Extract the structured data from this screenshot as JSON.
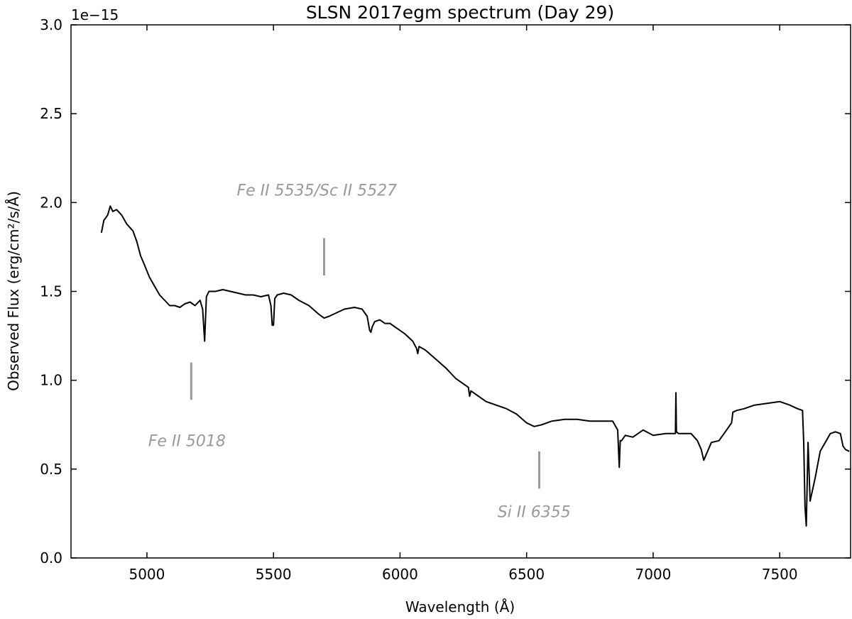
{
  "chart_data": {
    "type": "line",
    "title": "SLSN 2017egm spectrum (Day 29)",
    "xlabel": "Wavelength (Å)",
    "ylabel": "Observed Flux (erg/cm²/s/Å)",
    "y_offset_text": "1e−15",
    "xlim": [
      4700,
      7780
    ],
    "ylim": [
      0.0,
      3.0
    ],
    "x_ticks": [
      5000,
      5500,
      6000,
      6500,
      7000,
      7500
    ],
    "x_tick_labels": [
      "5000",
      "5500",
      "6000",
      "6500",
      "7000",
      "7500"
    ],
    "y_ticks": [
      0.0,
      0.5,
      1.0,
      1.5,
      2.0,
      2.5,
      3.0
    ],
    "y_tick_labels": [
      "0.0",
      "0.5",
      "1.0",
      "1.5",
      "2.0",
      "2.5",
      "3.0"
    ],
    "grid": false,
    "line_color": "#000000",
    "annotation_color": "#9a9a9a",
    "series": [
      {
        "x": [
          4820,
          4830,
          4845,
          4855,
          4865,
          4880,
          4900,
          4920,
          4945,
          4960,
          4975,
          4990,
          5010,
          5030,
          5050,
          5070,
          5090,
          5110,
          5130,
          5150,
          5170,
          5190,
          5210,
          5220,
          5228,
          5235,
          5245,
          5270,
          5300,
          5330,
          5360,
          5390,
          5420,
          5450,
          5480,
          5490,
          5495,
          5500,
          5505,
          5515,
          5540,
          5570,
          5600,
          5640,
          5680,
          5700,
          5720,
          5750,
          5780,
          5820,
          5850,
          5870,
          5880,
          5885,
          5890,
          5900,
          5920,
          5940,
          5960,
          5990,
          6020,
          6050,
          6065,
          6070,
          6075,
          6100,
          6140,
          6180,
          6220,
          6250,
          6270,
          6275,
          6280,
          6300,
          6340,
          6380,
          6420,
          6460,
          6500,
          6530,
          6560,
          6600,
          6650,
          6700,
          6750,
          6800,
          6840,
          6860,
          6866,
          6870,
          6875,
          6890,
          6920,
          6960,
          7000,
          7050,
          7088,
          7090,
          7092,
          7100,
          7150,
          7175,
          7190,
          7200,
          7215,
          7230,
          7260,
          7290,
          7310,
          7315,
          7330,
          7360,
          7400,
          7450,
          7500,
          7540,
          7570,
          7590,
          7595,
          7600,
          7605,
          7612,
          7620,
          7640,
          7660,
          7700,
          7720,
          7740,
          7750,
          7760,
          7775
        ],
        "y": [
          1.83,
          1.9,
          1.93,
          1.98,
          1.95,
          1.96,
          1.93,
          1.88,
          1.84,
          1.78,
          1.7,
          1.65,
          1.58,
          1.53,
          1.48,
          1.45,
          1.42,
          1.42,
          1.41,
          1.43,
          1.44,
          1.42,
          1.45,
          1.4,
          1.22,
          1.47,
          1.5,
          1.5,
          1.51,
          1.5,
          1.49,
          1.48,
          1.48,
          1.47,
          1.48,
          1.42,
          1.31,
          1.31,
          1.46,
          1.48,
          1.49,
          1.48,
          1.45,
          1.42,
          1.37,
          1.35,
          1.36,
          1.38,
          1.4,
          1.41,
          1.4,
          1.36,
          1.28,
          1.27,
          1.3,
          1.33,
          1.34,
          1.32,
          1.32,
          1.29,
          1.26,
          1.22,
          1.18,
          1.15,
          1.19,
          1.17,
          1.12,
          1.07,
          1.01,
          0.98,
          0.96,
          0.91,
          0.94,
          0.92,
          0.88,
          0.86,
          0.84,
          0.81,
          0.76,
          0.74,
          0.75,
          0.77,
          0.78,
          0.78,
          0.77,
          0.77,
          0.77,
          0.72,
          0.51,
          0.66,
          0.66,
          0.69,
          0.68,
          0.72,
          0.69,
          0.7,
          0.7,
          0.93,
          0.71,
          0.7,
          0.7,
          0.66,
          0.61,
          0.55,
          0.6,
          0.65,
          0.66,
          0.72,
          0.76,
          0.82,
          0.83,
          0.84,
          0.86,
          0.87,
          0.88,
          0.86,
          0.84,
          0.83,
          0.65,
          0.29,
          0.18,
          0.65,
          0.32,
          0.45,
          0.6,
          0.7,
          0.71,
          0.7,
          0.63,
          0.61,
          0.6
        ]
      }
    ],
    "annotations": [
      {
        "label": "Fe II 5535/Sc II 5527",
        "marker_x": 5700,
        "marker_y": [
          1.59,
          1.8
        ],
        "text_x": 5355,
        "text_y": 2.04
      },
      {
        "label": "Fe II 5018",
        "marker_x": 5175,
        "marker_y": [
          0.89,
          1.1
        ],
        "text_x": 5005,
        "text_y": 0.63
      },
      {
        "label": "Si II 6355",
        "marker_x": 6550,
        "marker_y": [
          0.39,
          0.6
        ],
        "text_x": 6385,
        "text_y": 0.23
      }
    ]
  }
}
